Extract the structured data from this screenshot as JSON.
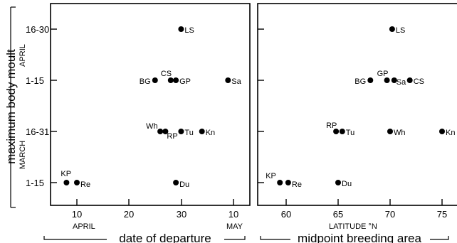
{
  "chart_data": [
    {
      "type": "scatter",
      "panel": "left",
      "xlabel": "date of departure",
      "ylabel": "maximum body moult",
      "x_tick_labels": [
        "10",
        "20",
        "30",
        "10"
      ],
      "x_month_labels": [
        "APRIL",
        "MAY"
      ],
      "y_tick_labels": [
        "1-15",
        "16-31",
        "1-15",
        "16-30"
      ],
      "y_month_labels": [
        "MARCH",
        "APRIL"
      ],
      "xlim": [
        "April 3",
        "May 14"
      ],
      "ylim": [
        0.5,
        4.5
      ],
      "y_categories": [
        "1-15 March",
        "16-31 March",
        "1-15 April",
        "16-30 April"
      ],
      "points": [
        {
          "label": "KP",
          "x": "April 8",
          "y": "1-15 March"
        },
        {
          "label": "Re",
          "x": "April 10",
          "y": "1-15 March"
        },
        {
          "label": "Du",
          "x": "April 29",
          "y": "1-15 March"
        },
        {
          "label": "Wh",
          "x": "April 26",
          "y": "16-31 March"
        },
        {
          "label": "RP",
          "x": "April 27",
          "y": "16-31 March"
        },
        {
          "label": "Tu",
          "x": "April 30",
          "y": "16-31 March"
        },
        {
          "label": "Kn",
          "x": "May 4",
          "y": "16-31 March"
        },
        {
          "label": "BG",
          "x": "April 25",
          "y": "1-15 April"
        },
        {
          "label": "CS",
          "x": "April 28",
          "y": "1-15 April"
        },
        {
          "label": "GP",
          "x": "April 29",
          "y": "1-15 April"
        },
        {
          "label": "Sa",
          "x": "May 9",
          "y": "1-15 April"
        },
        {
          "label": "LS",
          "x": "April 30",
          "y": "16-30 April"
        }
      ]
    },
    {
      "type": "scatter",
      "panel": "right",
      "xlabel": "midpoint breeding area",
      "x_axis_title": "LATITUDE °N",
      "x_tick_labels": [
        "60",
        "65",
        "70",
        "75"
      ],
      "xlim": [
        56.5,
        77.5
      ],
      "ylim": [
        0.5,
        4.5
      ],
      "y_categories": [
        "1-15 March",
        "16-31 March",
        "1-15 April",
        "16-30 April"
      ],
      "points": [
        {
          "label": "KP",
          "x": 59.4,
          "y": "1-15 March"
        },
        {
          "label": "Re",
          "x": 60.2,
          "y": "1-15 March"
        },
        {
          "label": "Du",
          "x": 65.0,
          "y": "1-15 March"
        },
        {
          "label": "RP",
          "x": 64.8,
          "y": "16-31 March"
        },
        {
          "label": "Tu",
          "x": 65.4,
          "y": "16-31 March"
        },
        {
          "label": "Wh",
          "x": 70.0,
          "y": "16-31 March"
        },
        {
          "label": "Kn",
          "x": 75.0,
          "y": "16-31 March"
        },
        {
          "label": "BG",
          "x": 68.1,
          "y": "1-15 April"
        },
        {
          "label": "GP",
          "x": 69.7,
          "y": "1-15 April"
        },
        {
          "label": "Sa",
          "x": 70.4,
          "y": "1-15 April"
        },
        {
          "label": "CS",
          "x": 71.9,
          "y": "1-15 April"
        },
        {
          "label": "LS",
          "x": 70.2,
          "y": "16-30 April"
        }
      ]
    }
  ]
}
